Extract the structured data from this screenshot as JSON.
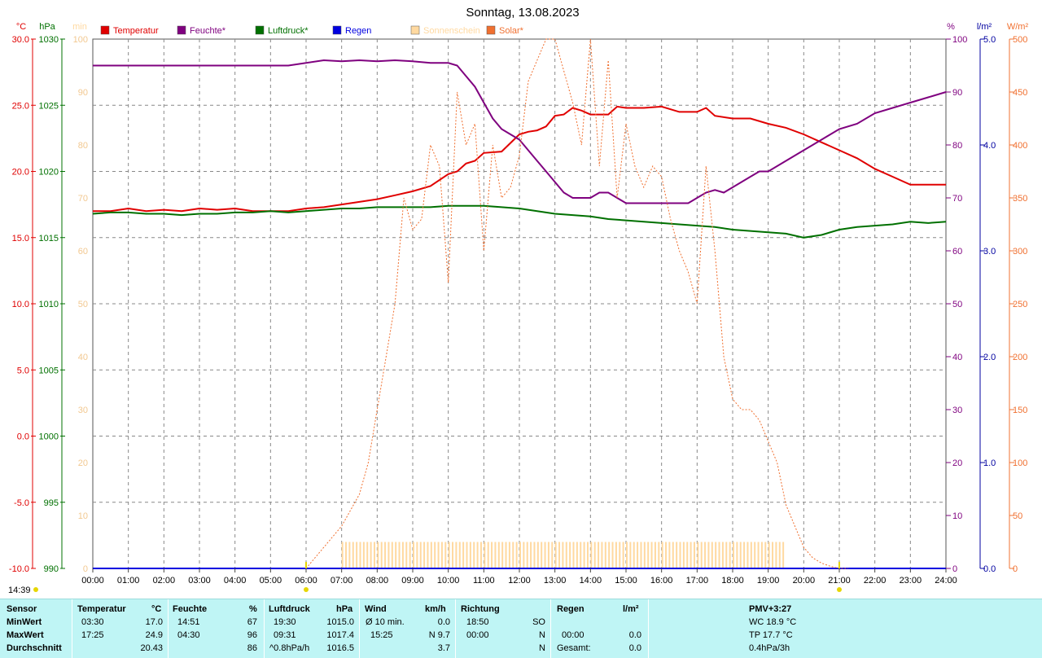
{
  "title": "Sonntag, 13.08.2023",
  "legend": [
    {
      "label": "Temperatur",
      "color": "#e00000"
    },
    {
      "label": "Feuchte*",
      "color": "#7f007f"
    },
    {
      "label": "Luftdruck*",
      "color": "#007000"
    },
    {
      "label": "Regen",
      "color": "#0000e0"
    },
    {
      "label": "Sonnenschein",
      "color": "#ffd9a0"
    },
    {
      "label": "Solar*",
      "color": "#f07030"
    }
  ],
  "axes": {
    "temp": {
      "unit": "°C",
      "color": "#e00000",
      "ticks": [
        "30.0",
        "25.0",
        "20.0",
        "15.0",
        "10.0",
        "5.0",
        "0.0",
        "-5.0",
        "-10.0"
      ]
    },
    "pressure": {
      "unit": "hPa",
      "color": "#007000",
      "ticks": [
        "1030",
        "1025",
        "1020",
        "1015",
        "1010",
        "1005",
        "1000",
        "995",
        "990"
      ]
    },
    "sun": {
      "unit": "min",
      "color": "#ffd9a0",
      "ticks": [
        "100",
        "90",
        "80",
        "70",
        "60",
        "50",
        "40",
        "30",
        "20",
        "10",
        "0"
      ]
    },
    "humidity": {
      "unit": "%",
      "color": "#7f007f",
      "ticks": [
        "100",
        "90",
        "80",
        "70",
        "60",
        "50",
        "40",
        "30",
        "20",
        "10",
        "0"
      ]
    },
    "rain": {
      "unit": "l/m²",
      "color": "#0000a0",
      "ticks": [
        "5.0",
        "4.0",
        "3.0",
        "2.0",
        "1.0",
        "0.0"
      ]
    },
    "solar": {
      "unit": "W/m²",
      "color": "#f07030",
      "ticks": [
        "500",
        "450",
        "400",
        "350",
        "300",
        "250",
        "200",
        "150",
        "100",
        "50",
        "0"
      ]
    },
    "x_ticks": [
      "00:00",
      "01:00",
      "02:00",
      "03:00",
      "04:00",
      "05:00",
      "06:00",
      "07:00",
      "08:00",
      "09:00",
      "10:00",
      "11:00",
      "12:00",
      "13:00",
      "14:00",
      "15:00",
      "16:00",
      "17:00",
      "18:00",
      "19:00",
      "20:00",
      "21:00",
      "22:00",
      "23:00",
      "24:00"
    ]
  },
  "sun_markers": {
    "sunrise": "06:00",
    "sunset": "21:00",
    "day_length": "14:39"
  },
  "chart_data": {
    "type": "line",
    "x_unit": "hour",
    "xlim": [
      0,
      24
    ],
    "series": [
      {
        "name": "Temperatur",
        "axis": "temp",
        "color": "#e00000",
        "x": [
          0,
          0.5,
          1,
          1.5,
          2,
          2.5,
          3,
          3.5,
          4,
          4.5,
          5,
          5.5,
          6,
          6.5,
          7,
          7.5,
          8,
          8.5,
          9,
          9.5,
          10,
          10.25,
          10.5,
          10.75,
          11,
          11.5,
          12,
          12.25,
          12.5,
          12.75,
          13,
          13.25,
          13.5,
          13.75,
          14,
          14.5,
          14.75,
          15,
          15.5,
          16,
          16.5,
          17,
          17.25,
          17.5,
          18,
          18.5,
          19,
          19.5,
          20,
          20.5,
          21,
          21.5,
          22,
          22.5,
          23,
          23.5,
          24
        ],
        "y": [
          17.0,
          17.0,
          17.2,
          17.0,
          17.1,
          17.0,
          17.2,
          17.1,
          17.2,
          17.0,
          17.0,
          17.0,
          17.2,
          17.3,
          17.5,
          17.7,
          17.9,
          18.2,
          18.5,
          18.9,
          19.8,
          20.0,
          20.6,
          20.8,
          21.4,
          21.5,
          22.8,
          23.0,
          23.1,
          23.4,
          24.2,
          24.3,
          24.8,
          24.6,
          24.3,
          24.3,
          24.9,
          24.8,
          24.8,
          24.9,
          24.5,
          24.5,
          24.8,
          24.2,
          24.0,
          24.0,
          23.6,
          23.3,
          22.8,
          22.2,
          21.6,
          21.0,
          20.2,
          19.6,
          19.0,
          19.0,
          19.0
        ]
      },
      {
        "name": "Feuchte*",
        "axis": "humidity",
        "color": "#7f007f",
        "x": [
          0,
          1,
          2,
          3,
          4,
          5,
          5.5,
          6,
          6.5,
          7,
          7.5,
          8,
          8.5,
          9,
          9.5,
          10,
          10.25,
          10.5,
          10.75,
          11,
          11.25,
          11.5,
          11.75,
          12,
          12.25,
          12.5,
          12.75,
          13,
          13.25,
          13.5,
          13.75,
          14,
          14.25,
          14.5,
          14.75,
          15,
          15.25,
          15.5,
          15.75,
          16,
          16.25,
          16.5,
          16.75,
          17,
          17.25,
          17.5,
          17.75,
          18,
          18.25,
          18.5,
          18.75,
          19,
          19.25,
          19.5,
          19.75,
          20,
          20.25,
          20.5,
          20.75,
          21,
          21.5,
          22,
          22.5,
          23,
          23.5,
          24
        ],
        "y": [
          95,
          95,
          95,
          95,
          95,
          95,
          95,
          95.5,
          96,
          95.8,
          96,
          95.8,
          96,
          95.8,
          95.5,
          95.5,
          95,
          93,
          91,
          88,
          85,
          83,
          82,
          81,
          79,
          77,
          75,
          73,
          71,
          70,
          70,
          70,
          71,
          71,
          70,
          69,
          69,
          69,
          69,
          69,
          69,
          69,
          69,
          70,
          71,
          71.5,
          71,
          72,
          73,
          74,
          75,
          75,
          76,
          77,
          78,
          79,
          80,
          81,
          82,
          83,
          84,
          86,
          87,
          88,
          89,
          90
        ]
      },
      {
        "name": "Luftdruck*",
        "axis": "pressure",
        "color": "#007000",
        "x": [
          0,
          0.5,
          1,
          1.5,
          2,
          2.5,
          3,
          3.5,
          4,
          4.5,
          5,
          5.5,
          6,
          6.5,
          7,
          7.5,
          8,
          8.5,
          9,
          9.5,
          10,
          10.5,
          11,
          11.5,
          12,
          12.5,
          13,
          13.5,
          14,
          14.5,
          15,
          15.5,
          16,
          16.5,
          17,
          17.5,
          18,
          18.5,
          19,
          19.5,
          20,
          20.5,
          21,
          21.5,
          22,
          22.5,
          23,
          23.5,
          24
        ],
        "y": [
          1016.8,
          1016.9,
          1016.9,
          1016.8,
          1016.8,
          1016.7,
          1016.8,
          1016.8,
          1016.9,
          1016.9,
          1017.0,
          1016.9,
          1017.0,
          1017.1,
          1017.2,
          1017.2,
          1017.3,
          1017.3,
          1017.3,
          1017.3,
          1017.4,
          1017.4,
          1017.4,
          1017.3,
          1017.2,
          1017.0,
          1016.8,
          1016.7,
          1016.6,
          1016.4,
          1016.3,
          1016.2,
          1016.1,
          1016.0,
          1015.9,
          1015.8,
          1015.6,
          1015.5,
          1015.4,
          1015.3,
          1015.0,
          1015.2,
          1015.6,
          1015.8,
          1015.9,
          1016.0,
          1016.2,
          1016.1,
          1016.2
        ]
      },
      {
        "name": "Regen",
        "axis": "rain",
        "color": "#0000e0",
        "x": [
          0,
          24
        ],
        "y": [
          0.0,
          0.0
        ]
      },
      {
        "name": "Solar*",
        "axis": "solar",
        "color": "#f07030",
        "x": [
          6,
          6.5,
          7,
          7.25,
          7.5,
          7.75,
          8,
          8.25,
          8.5,
          8.75,
          9,
          9.25,
          9.5,
          9.75,
          10,
          10.25,
          10.5,
          10.75,
          11,
          11.25,
          11.5,
          11.75,
          12,
          12.25,
          12.5,
          12.75,
          13,
          13.25,
          13.5,
          13.75,
          14,
          14.25,
          14.5,
          14.75,
          15,
          15.25,
          15.5,
          15.75,
          16,
          16.25,
          16.5,
          16.75,
          17,
          17.25,
          17.5,
          17.75,
          18,
          18.25,
          18.5,
          18.75,
          19,
          19.25,
          19.5,
          19.75,
          20,
          20.25,
          20.5,
          20.75,
          21,
          21.25
        ],
        "y": [
          0,
          20,
          40,
          55,
          70,
          100,
          150,
          200,
          250,
          350,
          320,
          330,
          400,
          380,
          270,
          450,
          400,
          420,
          300,
          400,
          350,
          360,
          390,
          460,
          480,
          500,
          500,
          470,
          440,
          400,
          500,
          380,
          480,
          350,
          420,
          380,
          360,
          380,
          370,
          330,
          300,
          280,
          250,
          380,
          300,
          200,
          160,
          150,
          150,
          140,
          120,
          100,
          60,
          40,
          20,
          10,
          5,
          2,
          0,
          0
        ]
      },
      {
        "name": "Sonnenschein",
        "axis": "sun",
        "color": "#ffd9a0",
        "type": "bar",
        "x_range": [
          7.0,
          19.5
        ],
        "y": 5
      }
    ]
  },
  "stats": {
    "headers": {
      "sensor": "Sensor",
      "temperature": "Temperatur",
      "temp_unit": "°C",
      "humidity": "Feuchte",
      "hum_unit": "%",
      "pressure": "Luftdruck",
      "press_unit": "hPa",
      "wind": "Wind",
      "wind_unit": "km/h",
      "direction": "Richtung",
      "rain": "Regen",
      "rain_unit": "l/m²",
      "pmv": "PMV+3:27"
    },
    "row_labels": [
      "MinWert",
      "MaxWert",
      "Durchschnitt"
    ],
    "temperature": [
      {
        "time": "03:30",
        "value": "17.0"
      },
      {
        "time": "17:25",
        "value": "24.9"
      },
      {
        "time": "",
        "value": "20.43"
      }
    ],
    "humidity": [
      {
        "time": "14:51",
        "value": "67"
      },
      {
        "time": "04:30",
        "value": "96"
      },
      {
        "time": "",
        "value": "86"
      }
    ],
    "pressure": [
      {
        "time": "19:30",
        "value": "1015.0"
      },
      {
        "time": "09:31",
        "value": "1017.4"
      },
      {
        "time": "^0.8hPa/h",
        "value": "1016.5"
      }
    ],
    "wind": [
      {
        "time": "Ø 10 min.",
        "value": "0.0"
      },
      {
        "time": "15:25",
        "value": "N 9.7"
      },
      {
        "time": "",
        "value": "3.7"
      }
    ],
    "direction": [
      {
        "time": "18:50",
        "value": "SO"
      },
      {
        "time": "00:00",
        "value": "N"
      },
      {
        "time": "",
        "value": "N"
      }
    ],
    "rain": [
      {
        "time": "",
        "value": ""
      },
      {
        "time": "00:00",
        "value": "0.0"
      },
      {
        "time": "Gesamt:",
        "value": "0.0"
      }
    ],
    "pmv": [
      "WC 18.9 °C",
      "TP 17.7 °C",
      "0.4hPa/3h"
    ]
  }
}
